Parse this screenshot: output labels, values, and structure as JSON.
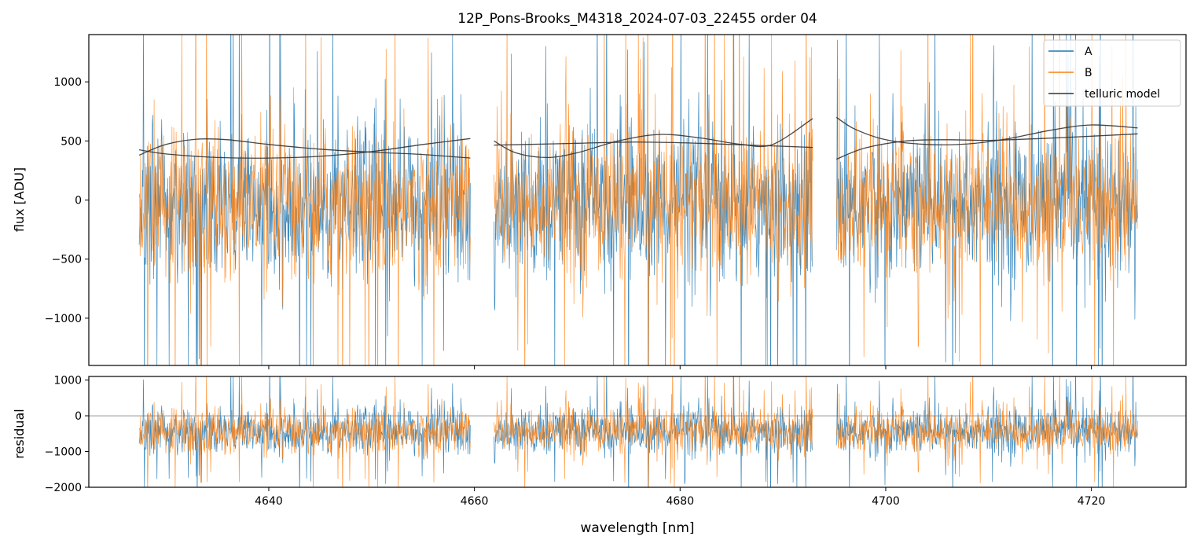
{
  "chart_data": [
    {
      "type": "line",
      "title": "12P_Pons-Brooks_M4318_2024-07-03_22455  order 04",
      "xlabel": "",
      "ylabel": "flux [ADU]",
      "xlim": [
        4622.5,
        4729.2
      ],
      "ylim": [
        -1400,
        1400
      ],
      "yticks": [
        -1000,
        -500,
        0,
        500,
        1000
      ],
      "xticks": [
        4640,
        4660,
        4680,
        4700,
        4720
      ],
      "legend": {
        "placement": "top-right",
        "entries": [
          "A",
          "B",
          "telluric model"
        ]
      },
      "segments": [
        [
          4627.4,
          4659.6
        ],
        [
          4661.9,
          4692.9
        ],
        [
          4695.2,
          4724.5
        ]
      ],
      "series": [
        {
          "name": "A",
          "color": "#1f77b4",
          "kind": "noisy-spectrum",
          "center": -30,
          "sigma": 330,
          "spike_max": 1600
        },
        {
          "name": "B",
          "color": "#ff7f0e",
          "kind": "noisy-spectrum",
          "center": -30,
          "sigma": 320,
          "spike_max": 1500
        },
        {
          "name": "telluric model",
          "color": "#333333",
          "curves": [
            {
              "x": [
                4627.4,
                4630,
                4633,
                4636,
                4640,
                4645,
                4650,
                4655,
                4659.6
              ],
              "y": [
                380,
                470,
                515,
                510,
                470,
                430,
                405,
                385,
                355
              ]
            },
            {
              "x": [
                4627.4,
                4630,
                4635,
                4640,
                4645,
                4650,
                4655,
                4659.6
              ],
              "y": [
                425,
                390,
                360,
                355,
                370,
                410,
                470,
                520
              ]
            },
            {
              "x": [
                4661.9,
                4664,
                4667,
                4670,
                4674,
                4678,
                4682,
                4686,
                4689,
                4692.9
              ],
              "y": [
                500,
                400,
                360,
                400,
                500,
                555,
                525,
                470,
                470,
                690
              ]
            },
            {
              "x": [
                4661.9,
                4665,
                4670,
                4675,
                4680,
                4685,
                4690,
                4692.9
              ],
              "y": [
                465,
                470,
                480,
                490,
                485,
                470,
                455,
                445
              ]
            },
            {
              "x": [
                4695.2,
                4697,
                4700,
                4704,
                4708,
                4712,
                4716,
                4720,
                4724.5
              ],
              "y": [
                700,
                600,
                510,
                470,
                475,
                520,
                590,
                635,
                610
              ]
            },
            {
              "x": [
                4695.2,
                4698,
                4702,
                4706,
                4710,
                4715,
                4720,
                4724.5
              ],
              "y": [
                345,
                440,
                500,
                510,
                505,
                520,
                540,
                560
              ]
            }
          ]
        }
      ]
    },
    {
      "type": "line",
      "title": "",
      "xlabel": "wavelength [nm]",
      "ylabel": "residual",
      "xlim": [
        4622.5,
        4729.2
      ],
      "ylim": [
        -2000,
        1100
      ],
      "yticks": [
        -2000,
        -1000,
        0,
        1000
      ],
      "xticks": [
        4640,
        4660,
        4680,
        4700,
        4720
      ],
      "zero_line": true,
      "segments": [
        [
          4627.4,
          4659.6
        ],
        [
          4661.9,
          4692.9
        ],
        [
          4695.2,
          4724.5
        ]
      ],
      "series": [
        {
          "name": "A",
          "color": "#1f77b4",
          "kind": "noisy-residual",
          "center": -430,
          "sigma": 330,
          "spike_max": 1500
        },
        {
          "name": "B",
          "color": "#ff7f0e",
          "kind": "noisy-residual",
          "center": -430,
          "sigma": 320,
          "spike_max": 1400
        }
      ]
    }
  ]
}
